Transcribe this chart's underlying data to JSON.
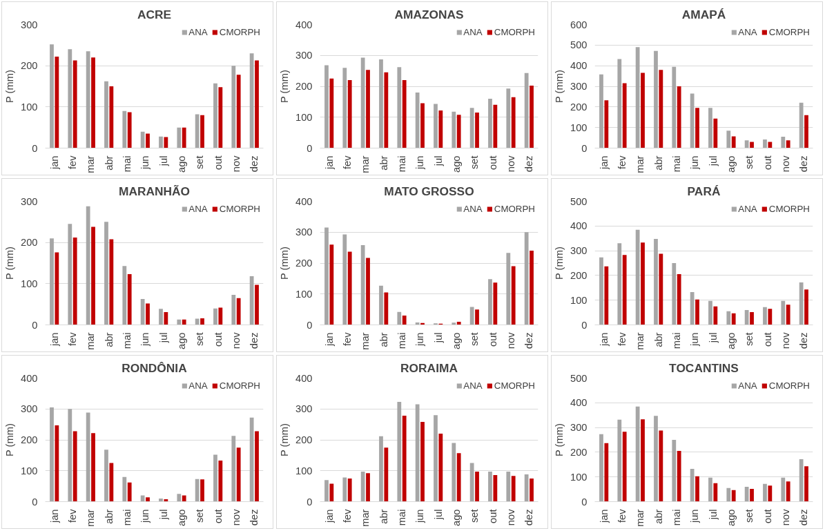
{
  "chart_data": [
    {
      "type": "bar",
      "title": "ACRE",
      "ylabel": "P (mm)",
      "categories": [
        "jan",
        "fev",
        "mar",
        "abr",
        "mai",
        "jun",
        "jul",
        "ago",
        "set",
        "out",
        "nov",
        "dez"
      ],
      "ylim": [
        0,
        300
      ],
      "yticks": [
        0,
        100,
        200,
        300
      ],
      "grid": "y",
      "legend": "top right",
      "series": [
        {
          "name": "ANA",
          "color": "#a6a6a6",
          "values": [
            252,
            240,
            235,
            162,
            90,
            40,
            28,
            50,
            82,
            157,
            200,
            230
          ]
        },
        {
          "name": "CMORPH",
          "color": "#c00000",
          "values": [
            222,
            213,
            220,
            150,
            87,
            35,
            27,
            50,
            80,
            148,
            178,
            213
          ]
        }
      ]
    },
    {
      "type": "bar",
      "title": "AMAZONAS",
      "ylabel": "P (mm)",
      "categories": [
        "jan",
        "fev",
        "mar",
        "abr",
        "mai",
        "jun",
        "jul",
        "ago",
        "set",
        "out",
        "nov",
        "dez"
      ],
      "ylim": [
        0,
        400
      ],
      "yticks": [
        0,
        100,
        200,
        300,
        400
      ],
      "grid": "y",
      "legend": "top right",
      "series": [
        {
          "name": "ANA",
          "color": "#a6a6a6",
          "values": [
            268,
            260,
            293,
            287,
            262,
            180,
            143,
            118,
            130,
            160,
            193,
            243
          ]
        },
        {
          "name": "CMORPH",
          "color": "#c00000",
          "values": [
            225,
            220,
            253,
            245,
            220,
            145,
            122,
            108,
            115,
            140,
            165,
            202
          ]
        }
      ]
    },
    {
      "type": "bar",
      "title": "AMAPÁ",
      "ylabel": "P (mm)",
      "categories": [
        "jan",
        "fev",
        "mar",
        "abr",
        "mai",
        "jun",
        "jul",
        "ago",
        "set",
        "out",
        "nov",
        "dez"
      ],
      "ylim": [
        0,
        600
      ],
      "yticks": [
        0,
        100,
        200,
        300,
        400,
        500,
        600
      ],
      "grid": "y",
      "legend": "top right",
      "series": [
        {
          "name": "ANA",
          "color": "#a6a6a6",
          "values": [
            358,
            432,
            490,
            472,
            395,
            265,
            195,
            85,
            38,
            42,
            55,
            220
          ]
        },
        {
          "name": "CMORPH",
          "color": "#c00000",
          "values": [
            232,
            315,
            365,
            380,
            300,
            195,
            143,
            57,
            30,
            30,
            38,
            160
          ]
        }
      ]
    },
    {
      "type": "bar",
      "title": "MARANHÃO",
      "ylabel": "P (mm)",
      "categories": [
        "jan",
        "fev",
        "mar",
        "abr",
        "mai",
        "jun",
        "jul",
        "ago",
        "set",
        "out",
        "nov",
        "dez"
      ],
      "ylim": [
        0,
        300
      ],
      "yticks": [
        0,
        100,
        200,
        300
      ],
      "grid": "y",
      "legend": "top right",
      "series": [
        {
          "name": "ANA",
          "color": "#a6a6a6",
          "values": [
            210,
            245,
            288,
            250,
            143,
            63,
            39,
            13,
            15,
            40,
            73,
            118
          ]
        },
        {
          "name": "CMORPH",
          "color": "#c00000",
          "values": [
            176,
            212,
            238,
            208,
            123,
            52,
            31,
            13,
            16,
            42,
            65,
            97
          ]
        }
      ]
    },
    {
      "type": "bar",
      "title": "MATO GROSSO",
      "ylabel": "P (mm)",
      "categories": [
        "jan",
        "fev",
        "mar",
        "abr",
        "mai",
        "jun",
        "jul",
        "ago",
        "set",
        "out",
        "nov",
        "dez"
      ],
      "ylim": [
        0,
        400
      ],
      "yticks": [
        0,
        100,
        200,
        300,
        400
      ],
      "grid": "y",
      "legend": "top right",
      "series": [
        {
          "name": "ANA",
          "color": "#a6a6a6",
          "values": [
            315,
            293,
            258,
            127,
            42,
            8,
            5,
            7,
            58,
            148,
            233,
            300
          ]
        },
        {
          "name": "CMORPH",
          "color": "#c00000",
          "values": [
            260,
            237,
            217,
            105,
            30,
            6,
            4,
            10,
            50,
            137,
            190,
            240
          ]
        }
      ]
    },
    {
      "type": "bar",
      "title": "PARÁ",
      "ylabel": "P (mm)",
      "categories": [
        "jan",
        "fev",
        "mar",
        "abr",
        "mai",
        "jun",
        "jul",
        "ago",
        "set",
        "out",
        "nov",
        "dez"
      ],
      "ylim": [
        0,
        500
      ],
      "yticks": [
        0,
        100,
        200,
        300,
        400,
        500
      ],
      "grid": "y",
      "legend": "top right",
      "series": [
        {
          "name": "ANA",
          "color": "#a6a6a6",
          "values": [
            273,
            330,
            385,
            348,
            250,
            133,
            97,
            55,
            60,
            72,
            97,
            172
          ]
        },
        {
          "name": "CMORPH",
          "color": "#c00000",
          "values": [
            237,
            283,
            333,
            288,
            205,
            103,
            75,
            47,
            52,
            65,
            82,
            143
          ]
        }
      ]
    },
    {
      "type": "bar",
      "title": "RONDÔNIA",
      "ylabel": "P (mm)",
      "categories": [
        "jan",
        "fev",
        "mar",
        "abr",
        "mai",
        "jun",
        "jul",
        "ago",
        "set",
        "out",
        "nov",
        "dez"
      ],
      "ylim": [
        0,
        400
      ],
      "yticks": [
        0,
        100,
        200,
        300,
        400
      ],
      "grid": "y",
      "legend": "top right",
      "series": [
        {
          "name": "ANA",
          "color": "#a6a6a6",
          "values": [
            305,
            300,
            288,
            168,
            80,
            20,
            10,
            25,
            73,
            152,
            213,
            272
          ]
        },
        {
          "name": "CMORPH",
          "color": "#c00000",
          "values": [
            247,
            228,
            222,
            125,
            62,
            14,
            8,
            20,
            72,
            133,
            175,
            228
          ]
        }
      ]
    },
    {
      "type": "bar",
      "title": "RORAIMA",
      "ylabel": "P (mm)",
      "categories": [
        "jan",
        "fev",
        "mar",
        "abr",
        "mai",
        "jun",
        "jul",
        "ago",
        "set",
        "out",
        "nov",
        "dez"
      ],
      "ylim": [
        0,
        400
      ],
      "yticks": [
        0,
        100,
        200,
        300,
        400
      ],
      "grid": "y",
      "legend": "top right",
      "series": [
        {
          "name": "ANA",
          "color": "#a6a6a6",
          "values": [
            70,
            78,
            97,
            212,
            323,
            315,
            280,
            190,
            125,
            97,
            97,
            88
          ]
        },
        {
          "name": "CMORPH",
          "color": "#c00000",
          "values": [
            58,
            75,
            92,
            175,
            278,
            258,
            220,
            157,
            97,
            86,
            83,
            75
          ]
        }
      ]
    },
    {
      "type": "bar",
      "title": "TOCANTINS",
      "ylabel": "P (mm)",
      "categories": [
        "jan",
        "fev",
        "mar",
        "abr",
        "mai",
        "jun",
        "jul",
        "ago",
        "set",
        "out",
        "nov",
        "dez"
      ],
      "ylim": [
        0,
        500
      ],
      "yticks": [
        0,
        100,
        200,
        300,
        400,
        500
      ],
      "grid": "y",
      "legend": "top right",
      "series": [
        {
          "name": "ANA",
          "color": "#a6a6a6",
          "values": [
            273,
            332,
            385,
            347,
            250,
            133,
            97,
            55,
            60,
            72,
            97,
            172
          ]
        },
        {
          "name": "CMORPH",
          "color": "#c00000",
          "values": [
            237,
            283,
            333,
            288,
            205,
            103,
            75,
            47,
            52,
            65,
            82,
            143
          ]
        }
      ]
    }
  ]
}
